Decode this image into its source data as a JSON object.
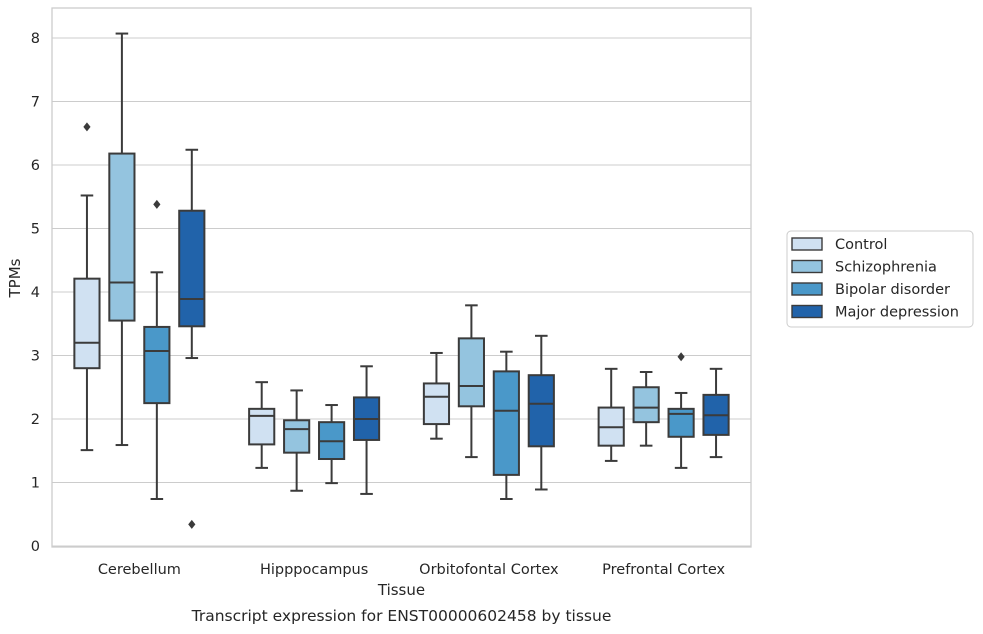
{
  "chart_data": {
    "type": "box",
    "title": "Transcript expression for ENST00000602458 by tissue",
    "xlabel": "Tissue",
    "ylabel": "TPMs",
    "ylim": [
      0,
      8.5
    ],
    "yticks": [
      0,
      1,
      2,
      3,
      4,
      5,
      6,
      7,
      8
    ],
    "grid": "horizontal",
    "legend_position": "right",
    "categories": [
      "Cerebellum",
      "Hipppocampus",
      "Orbitofontal Cortex",
      "Prefrontal Cortex"
    ],
    "series": [
      {
        "name": "Control",
        "color": "#d0e1f2",
        "boxes": [
          {
            "whislo": 1.51,
            "q1": 2.8,
            "med": 3.2,
            "q3": 4.21,
            "whishi": 5.52,
            "fliers": [
              6.6
            ]
          },
          {
            "whislo": 1.23,
            "q1": 1.6,
            "med": 2.05,
            "q3": 2.16,
            "whishi": 2.58,
            "fliers": []
          },
          {
            "whislo": 1.69,
            "q1": 1.92,
            "med": 2.35,
            "q3": 2.56,
            "whishi": 3.04,
            "fliers": []
          },
          {
            "whislo": 1.34,
            "q1": 1.58,
            "med": 1.87,
            "q3": 2.18,
            "whishi": 2.79,
            "fliers": []
          }
        ]
      },
      {
        "name": "Schizophrenia",
        "color": "#94c4df",
        "boxes": [
          {
            "whislo": 1.59,
            "q1": 3.55,
            "med": 4.15,
            "q3": 6.18,
            "whishi": 8.07,
            "fliers": []
          },
          {
            "whislo": 0.87,
            "q1": 1.47,
            "med": 1.84,
            "q3": 1.98,
            "whishi": 2.45,
            "fliers": []
          },
          {
            "whislo": 1.4,
            "q1": 2.2,
            "med": 2.52,
            "q3": 3.27,
            "whishi": 3.79,
            "fliers": []
          },
          {
            "whislo": 1.58,
            "q1": 1.95,
            "med": 2.18,
            "q3": 2.5,
            "whishi": 2.74,
            "fliers": []
          }
        ]
      },
      {
        "name": "Bipolar disorder",
        "color": "#4a98c9",
        "boxes": [
          {
            "whislo": 0.74,
            "q1": 2.25,
            "med": 3.07,
            "q3": 3.45,
            "whishi": 4.31,
            "fliers": [
              5.38
            ]
          },
          {
            "whislo": 0.99,
            "q1": 1.37,
            "med": 1.65,
            "q3": 1.95,
            "whishi": 2.22,
            "fliers": []
          },
          {
            "whislo": 0.74,
            "q1": 1.12,
            "med": 2.13,
            "q3": 2.75,
            "whishi": 3.06,
            "fliers": []
          },
          {
            "whislo": 1.23,
            "q1": 1.72,
            "med": 2.08,
            "q3": 2.16,
            "whishi": 2.41,
            "fliers": [
              2.98
            ]
          }
        ]
      },
      {
        "name": "Major depression",
        "color": "#2163aa",
        "boxes": [
          {
            "whislo": 2.96,
            "q1": 3.46,
            "med": 3.89,
            "q3": 5.28,
            "whishi": 6.24,
            "fliers": [
              0.34
            ]
          },
          {
            "whislo": 0.82,
            "q1": 1.67,
            "med": 2.0,
            "q3": 2.34,
            "whishi": 2.83,
            "fliers": []
          },
          {
            "whislo": 0.89,
            "q1": 1.57,
            "med": 2.24,
            "q3": 2.69,
            "whishi": 3.31,
            "fliers": []
          },
          {
            "whislo": 1.4,
            "q1": 1.75,
            "med": 2.06,
            "q3": 2.38,
            "whishi": 2.79,
            "fliers": []
          }
        ]
      }
    ]
  }
}
